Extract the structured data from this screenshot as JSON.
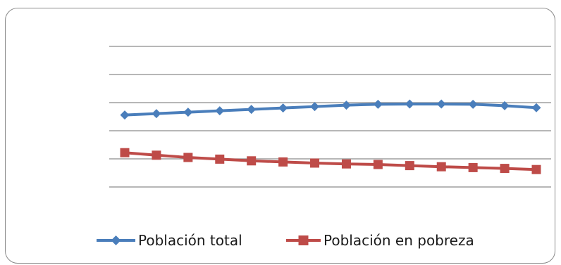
{
  "chart_data": {
    "type": "line",
    "title": "",
    "xlabel": "",
    "ylabel": "",
    "ylim": [
      0,
      6
    ],
    "grid": true,
    "legend_position": "bottom",
    "x": [
      1,
      2,
      3,
      4,
      5,
      6,
      7,
      8,
      9,
      10,
      11,
      12,
      13,
      14
    ],
    "series": [
      {
        "name": "Población total",
        "color": "#4a7ebb",
        "marker": "diamond",
        "values": [
          3.56,
          3.61,
          3.66,
          3.71,
          3.76,
          3.81,
          3.86,
          3.91,
          3.94,
          3.95,
          3.95,
          3.94,
          3.89,
          3.82
        ]
      },
      {
        "name": "Población en pobreza",
        "color": "#be4b48",
        "marker": "square",
        "values": [
          2.22,
          2.13,
          2.05,
          1.99,
          1.93,
          1.89,
          1.85,
          1.82,
          1.8,
          1.76,
          1.72,
          1.69,
          1.66,
          1.62
        ]
      }
    ]
  }
}
